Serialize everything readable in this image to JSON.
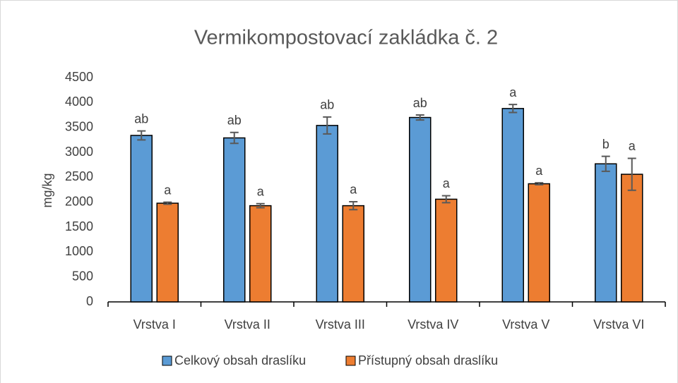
{
  "chart_data": {
    "type": "bar",
    "title": "Vermikompostovací zakládka č. 2",
    "ylabel": "mg/kg",
    "categories": [
      "Vrstva I",
      "Vrstva II",
      "Vrstva III",
      "Vrstva IV",
      "Vrstva V",
      "Vrstva VI"
    ],
    "series": [
      {
        "name": "Celkový obsah draslíku",
        "color": "#5b9bd5",
        "values": [
          3340,
          3290,
          3540,
          3700,
          3880,
          2770
        ],
        "errors": [
          90,
          110,
          170,
          50,
          80,
          150
        ],
        "letters": [
          "ab",
          "ab",
          "ab",
          "ab",
          "a",
          "b"
        ]
      },
      {
        "name": "Přístupný obsah draslíku",
        "color": "#ed7d31",
        "values": [
          1980,
          1930,
          1930,
          2060,
          2370,
          2560
        ],
        "errors": [
          20,
          40,
          80,
          70,
          20,
          320
        ],
        "letters": [
          "a",
          "a",
          "a",
          "a",
          "a",
          "a"
        ]
      }
    ],
    "ylim": [
      0,
      4500
    ],
    "yticks": [
      0,
      500,
      1000,
      1500,
      2000,
      2500,
      3000,
      3500,
      4000,
      4500
    ],
    "grid": false,
    "legend": "bottom"
  }
}
